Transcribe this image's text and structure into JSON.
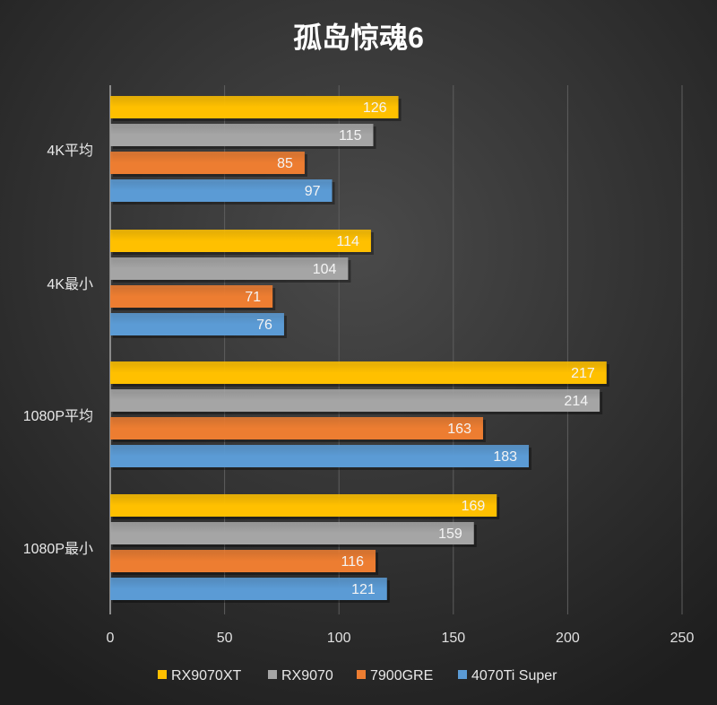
{
  "chart_data": {
    "type": "bar",
    "orientation": "horizontal",
    "title": "孤岛惊魂6",
    "categories": [
      "4K平均",
      "4K最小",
      "1080P平均",
      "1080P最小"
    ],
    "series": [
      {
        "name": "RX9070XT",
        "color": "#ffc000",
        "values": [
          126,
          114,
          217,
          169
        ]
      },
      {
        "name": "RX9070",
        "color": "#a5a5a5",
        "values": [
          115,
          104,
          214,
          159
        ]
      },
      {
        "name": "7900GRE",
        "color": "#ed7d31",
        "values": [
          85,
          71,
          163,
          116
        ]
      },
      {
        "name": "4070Ti Super",
        "color": "#5b9bd5",
        "values": [
          97,
          76,
          183,
          121
        ]
      }
    ],
    "xlim": [
      0,
      250
    ],
    "xticks": [
      0,
      50,
      100,
      150,
      200,
      250
    ],
    "xlabel": "",
    "ylabel": "",
    "grid": true,
    "legend": "bottom",
    "data_labels": true
  }
}
